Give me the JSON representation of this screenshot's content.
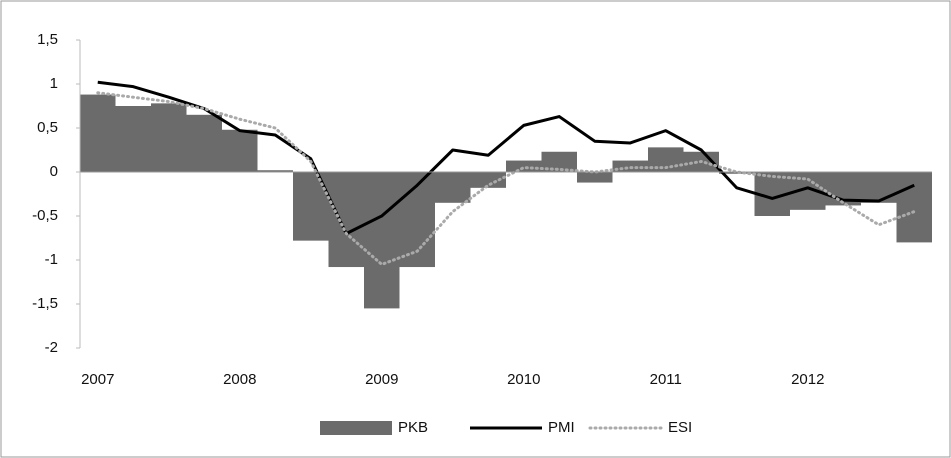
{
  "chart_data": {
    "type": "bar-line",
    "categories": [
      "2007",
      null,
      null,
      null,
      "2008",
      null,
      null,
      null,
      "2009",
      null,
      null,
      null,
      "2010",
      null,
      null,
      null,
      "2011",
      null,
      null,
      null,
      "2012",
      null,
      null,
      null
    ],
    "series": [
      {
        "name": "PKB",
        "type": "bar",
        "color": "#6b6b6b",
        "values": [
          0.88,
          0.75,
          0.78,
          0.65,
          0.48,
          0.02,
          -0.78,
          -1.08,
          -1.55,
          -1.08,
          -0.35,
          -0.18,
          0.13,
          0.23,
          -0.12,
          0.13,
          0.28,
          0.23,
          -0.02,
          -0.5,
          -0.43,
          -0.38,
          -0.35,
          -0.8
        ]
      },
      {
        "name": "PMI",
        "type": "line",
        "color": "#000000",
        "values": [
          1.02,
          0.97,
          0.85,
          0.72,
          0.47,
          0.42,
          0.15,
          -0.7,
          -0.5,
          -0.15,
          0.25,
          0.19,
          0.53,
          0.63,
          0.35,
          0.33,
          0.47,
          0.25,
          -0.18,
          -0.3,
          -0.18,
          -0.32,
          -0.33,
          -0.15
        ]
      },
      {
        "name": "ESI",
        "type": "dotted-line",
        "color": "#aaaaaa",
        "values": [
          0.9,
          0.85,
          0.8,
          0.72,
          0.6,
          0.5,
          0.12,
          -0.7,
          -1.05,
          -0.9,
          -0.45,
          -0.15,
          0.05,
          0.03,
          0.0,
          0.05,
          0.05,
          0.12,
          0.0,
          -0.05,
          -0.08,
          -0.35,
          -0.6,
          -0.45
        ]
      }
    ],
    "ylim": [
      -2,
      1.5
    ],
    "yticks": [
      {
        "value": -2,
        "label": "-2"
      },
      {
        "value": -1.5,
        "label": "-1,5"
      },
      {
        "value": -1,
        "label": "-1"
      },
      {
        "value": -0.5,
        "label": "-0,5"
      },
      0,
      {
        "value": 0.5,
        "label": "0,5"
      },
      1,
      {
        "value": 1.5,
        "label": "1,5"
      }
    ],
    "legend": "bottom"
  }
}
